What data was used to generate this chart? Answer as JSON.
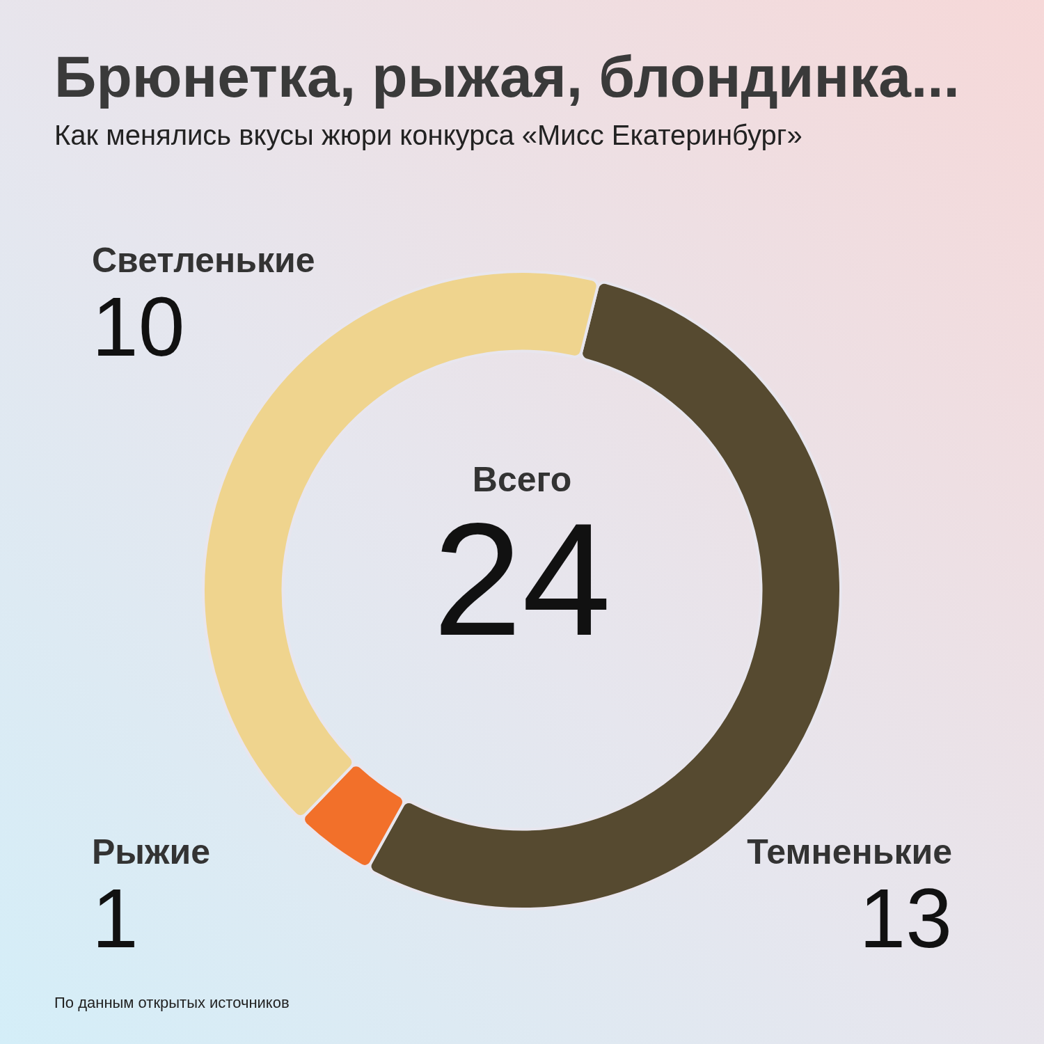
{
  "chart_data": {
    "type": "donut",
    "title": "Брюнетка, рыжая, блондинка...",
    "subtitle": "Как менялись вкусы жюри конкурса «Мисс Екатеринбург»",
    "categories": [
      "Темненькие",
      "Рыжие",
      "Светленькие"
    ],
    "values": [
      13,
      1,
      10
    ],
    "colors": [
      "#564a30",
      "#f2702a",
      "#efd48e"
    ],
    "data_labels": true,
    "legend": false,
    "annotations": [
      "Всего",
      "24",
      "По данным открытых источников"
    ]
  }
}
